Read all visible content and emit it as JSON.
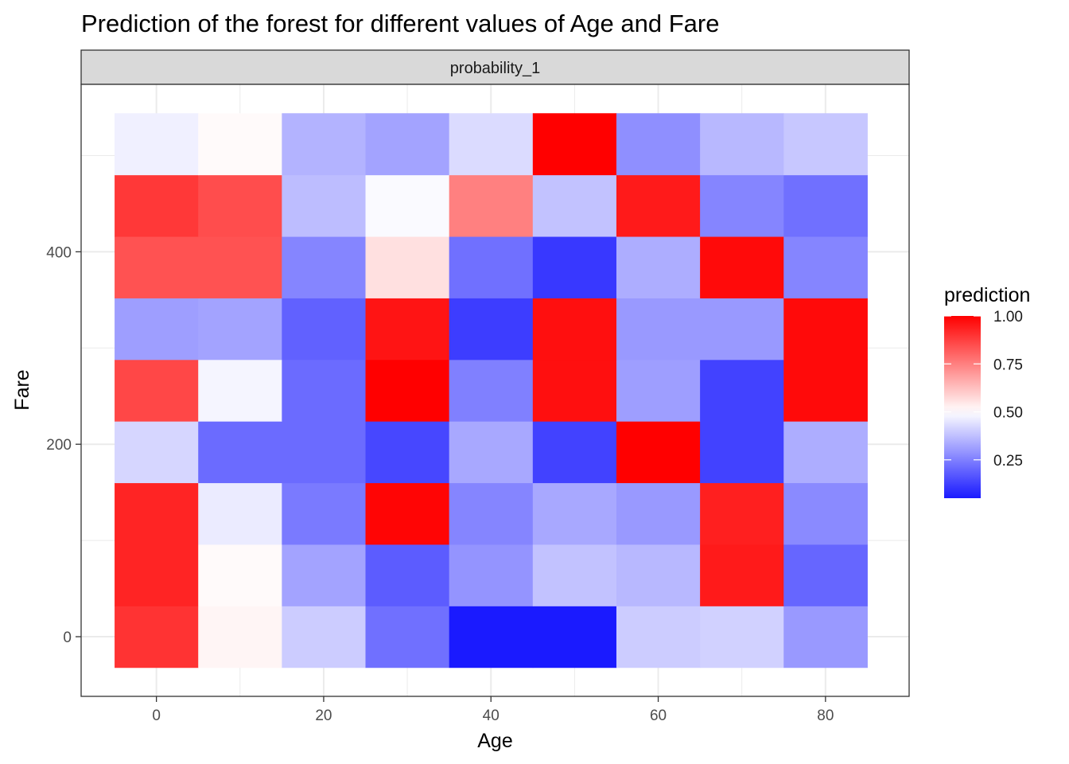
{
  "chart_data": {
    "type": "heatmap",
    "title": "Prediction of the forest for different values of Age and Fare",
    "facet_label": "probability_1",
    "xlabel": "Age",
    "ylabel": "Fare",
    "x": [
      0,
      10,
      20,
      30,
      40,
      50,
      60,
      70,
      80
    ],
    "y": [
      0,
      64,
      128,
      192,
      256,
      320,
      384,
      448,
      512
    ],
    "x_ticks": [
      0,
      20,
      40,
      60,
      80
    ],
    "y_ticks": [
      0,
      200,
      400
    ],
    "xlim": [
      -9,
      90
    ],
    "ylim": [
      -62,
      574
    ],
    "grid": true,
    "legend": {
      "title": "prediction",
      "position": "right",
      "ticks": [
        "1.00",
        "0.75",
        "0.50",
        "0.25"
      ],
      "tick_values": [
        1.0,
        0.75,
        0.5,
        0.25
      ],
      "range": [
        0.05,
        1.0
      ],
      "colors": {
        "low": "#0000ff",
        "mid": "#ffffff",
        "high": "#ff0000",
        "midpoint": 0.5
      }
    },
    "values": [
      [
        0.9,
        0.52,
        0.4,
        0.22,
        0.05,
        0.05,
        0.4,
        0.41,
        0.3
      ],
      [
        0.93,
        0.51,
        0.32,
        0.18,
        0.29,
        0.38,
        0.36,
        0.95,
        0.2
      ],
      [
        0.93,
        0.46,
        0.24,
        0.99,
        0.26,
        0.33,
        0.3,
        0.94,
        0.27
      ],
      [
        0.42,
        0.21,
        0.21,
        0.14,
        0.33,
        0.13,
        1.0,
        0.13,
        0.34
      ],
      [
        0.86,
        0.48,
        0.21,
        1.0,
        0.25,
        0.97,
        0.31,
        0.13,
        0.98
      ],
      [
        0.31,
        0.32,
        0.19,
        0.96,
        0.12,
        0.97,
        0.3,
        0.3,
        0.98
      ],
      [
        0.84,
        0.84,
        0.26,
        0.56,
        0.22,
        0.11,
        0.34,
        0.98,
        0.26
      ],
      [
        0.89,
        0.85,
        0.37,
        0.49,
        0.75,
        0.38,
        0.95,
        0.26,
        0.22
      ],
      [
        0.47,
        0.51,
        0.35,
        0.32,
        0.43,
        1.0,
        0.28,
        0.36,
        0.39
      ]
    ]
  }
}
